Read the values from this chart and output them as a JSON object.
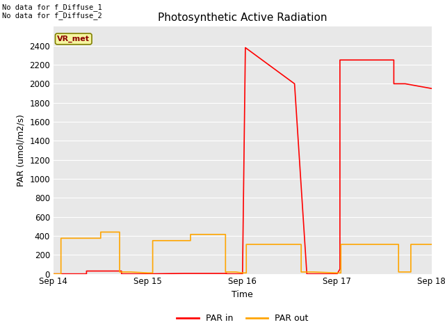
{
  "title": "Photosynthetic Active Radiation",
  "xlabel": "Time",
  "ylabel": "PAR (umol/m2/s)",
  "plot_bg_color": "#e8e8e8",
  "fig_bg_color": "#ffffff",
  "top_left_text": "No data for f_Diffuse_1\nNo data for f_Diffuse_2",
  "vr_met_label": "VR_met",
  "ylim": [
    0,
    2600
  ],
  "yticks": [
    0,
    200,
    400,
    600,
    800,
    1000,
    1200,
    1400,
    1600,
    1800,
    2000,
    2200,
    2400
  ],
  "xlim": [
    0,
    4.0
  ],
  "x_day_positions": [
    0,
    1,
    2,
    3,
    4
  ],
  "x_day_labels": [
    "Sep 14",
    "Sep 15",
    "Sep 16",
    "Sep 17",
    "Sep 18"
  ],
  "par_in_color": "#ff0000",
  "par_out_color": "#ffa500",
  "par_in_linewidth": 1.2,
  "par_out_linewidth": 1.2,
  "par_in_data": {
    "x": [
      0.0,
      0.35,
      0.35,
      0.72,
      0.72,
      1.0,
      1.38,
      1.38,
      1.83,
      1.83,
      2.0,
      2.03,
      2.03,
      2.55,
      2.55,
      2.68,
      3.0,
      3.03,
      3.03,
      3.6,
      3.6,
      3.72,
      4.0
    ],
    "y": [
      0,
      0,
      30,
      30,
      0,
      0,
      5,
      5,
      5,
      0,
      0,
      2380,
      2380,
      2000,
      2000,
      0,
      0,
      50,
      2250,
      2250,
      2000,
      2000,
      1950
    ]
  },
  "par_out_data": {
    "x": [
      0.0,
      0.08,
      0.08,
      0.5,
      0.5,
      0.7,
      0.7,
      0.82,
      1.0,
      1.05,
      1.05,
      1.45,
      1.45,
      1.82,
      1.82,
      1.93,
      2.0,
      2.04,
      2.04,
      2.62,
      2.62,
      2.75,
      3.0,
      3.04,
      3.04,
      3.65,
      3.65,
      3.78,
      3.78,
      3.9,
      4.0
    ],
    "y": [
      0,
      0,
      375,
      375,
      440,
      440,
      20,
      20,
      10,
      10,
      350,
      350,
      415,
      415,
      20,
      20,
      10,
      10,
      310,
      310,
      20,
      20,
      10,
      10,
      310,
      310,
      20,
      20,
      310,
      310,
      310
    ]
  },
  "title_fontsize": 11,
  "axis_fontsize": 9,
  "tick_fontsize": 8.5,
  "legend_fontsize": 9
}
